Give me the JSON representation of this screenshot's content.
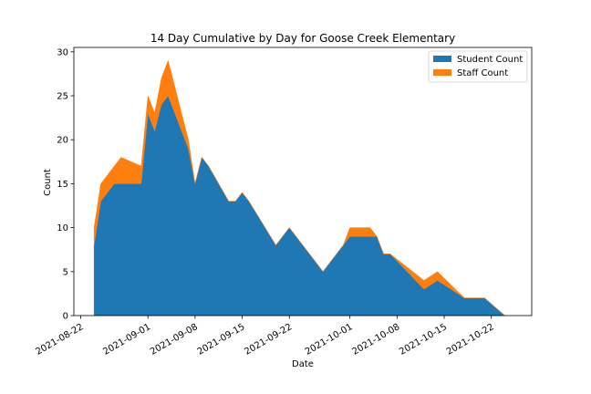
{
  "chart_data": {
    "type": "area",
    "stacked": true,
    "title": "14 Day Cumulative by Day for Goose Creek Elementary",
    "xlabel": "Date",
    "ylabel": "Count",
    "xlim": [
      "2021-08-21",
      "2021-10-28"
    ],
    "ylim": [
      0,
      30.5
    ],
    "x_ticks": [
      "2021-08-22",
      "2021-09-01",
      "2021-09-08",
      "2021-09-15",
      "2021-09-22",
      "2021-10-01",
      "2021-10-08",
      "2021-10-15",
      "2021-10-22"
    ],
    "y_ticks": [
      0,
      5,
      10,
      15,
      20,
      25,
      30
    ],
    "legend": {
      "position": "top-right"
    },
    "grid": false,
    "x": [
      "2021-08-24",
      "2021-08-25",
      "2021-08-27",
      "2021-08-28",
      "2021-08-31",
      "2021-09-01",
      "2021-09-02",
      "2021-09-03",
      "2021-09-04",
      "2021-09-07",
      "2021-09-08",
      "2021-09-09",
      "2021-09-10",
      "2021-09-13",
      "2021-09-14",
      "2021-09-15",
      "2021-09-16",
      "2021-09-20",
      "2021-09-22",
      "2021-09-27",
      "2021-09-30",
      "2021-10-01",
      "2021-10-04",
      "2021-10-05",
      "2021-10-06",
      "2021-10-07",
      "2021-10-12",
      "2021-10-14",
      "2021-10-18",
      "2021-10-21",
      "2021-10-24"
    ],
    "series": [
      {
        "name": "Student Count",
        "color": "#1f77b4",
        "values": [
          8,
          13,
          15,
          15,
          15,
          23,
          21,
          24,
          25,
          19,
          15,
          18,
          17,
          13,
          13,
          14,
          13,
          8,
          10,
          5,
          8,
          9,
          9,
          9,
          7,
          7,
          3,
          4,
          2,
          2,
          0
        ]
      },
      {
        "name": "Staff Count",
        "color": "#ff7f0e",
        "values": [
          2,
          2,
          2,
          3,
          2,
          2,
          2,
          3,
          4,
          1,
          0,
          0,
          0,
          0,
          0,
          0,
          0,
          0,
          0,
          0,
          0,
          1,
          1,
          0,
          0,
          0,
          1,
          1,
          0,
          0,
          0
        ]
      }
    ]
  }
}
